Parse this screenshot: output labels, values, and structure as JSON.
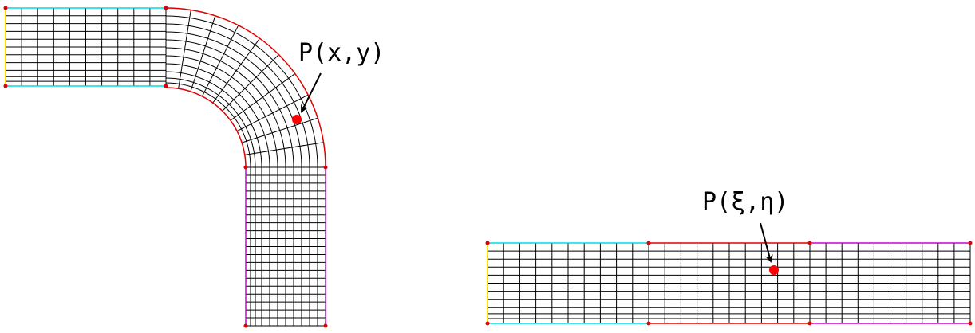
{
  "physical_domain": {
    "point_label": "P(x,y)"
  },
  "computational_domain": {
    "point_label": "P(ξ,η)"
  },
  "colors": {
    "inlet_edge": "#ffe000",
    "cyan_edge": "#00d8e8",
    "red_edge": "#e00000",
    "magenta_edge": "#d000d0",
    "grid": "#000000",
    "point": "#ff0000",
    "vertex": "#e00000"
  }
}
